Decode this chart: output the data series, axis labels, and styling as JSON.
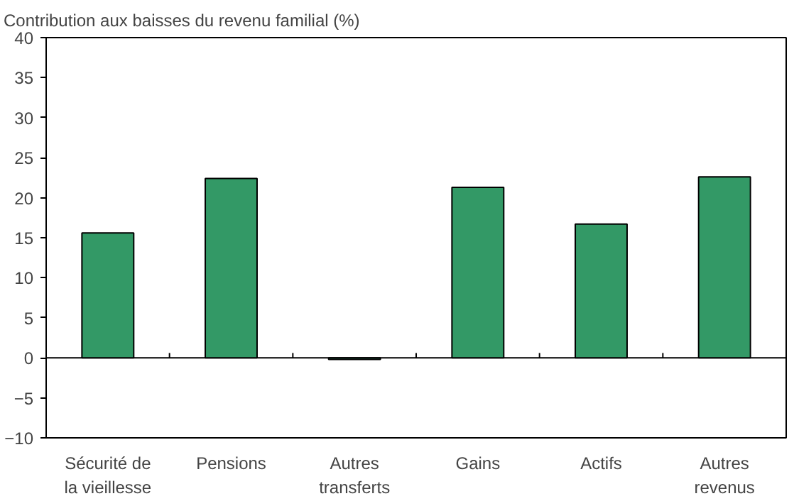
{
  "chart_data": {
    "type": "bar",
    "title": "Contribution aux baisses du revenu familial (%)",
    "categories": [
      "Sécurité de\nla vieillesse",
      "Pensions",
      "Autres\ntransferts",
      "Gains",
      "Actifs",
      "Autres\nrevenus"
    ],
    "values": [
      15.6,
      22.4,
      -0.2,
      21.3,
      16.7,
      22.6
    ],
    "color": "#339966",
    "ylim": [
      -10,
      40
    ],
    "yticks": [
      -10,
      -5,
      0,
      5,
      10,
      15,
      20,
      25,
      30,
      35,
      40
    ],
    "grid": false,
    "ref_lines": [
      {
        "axis": "y",
        "value": 0,
        "color": "#000000"
      }
    ]
  }
}
